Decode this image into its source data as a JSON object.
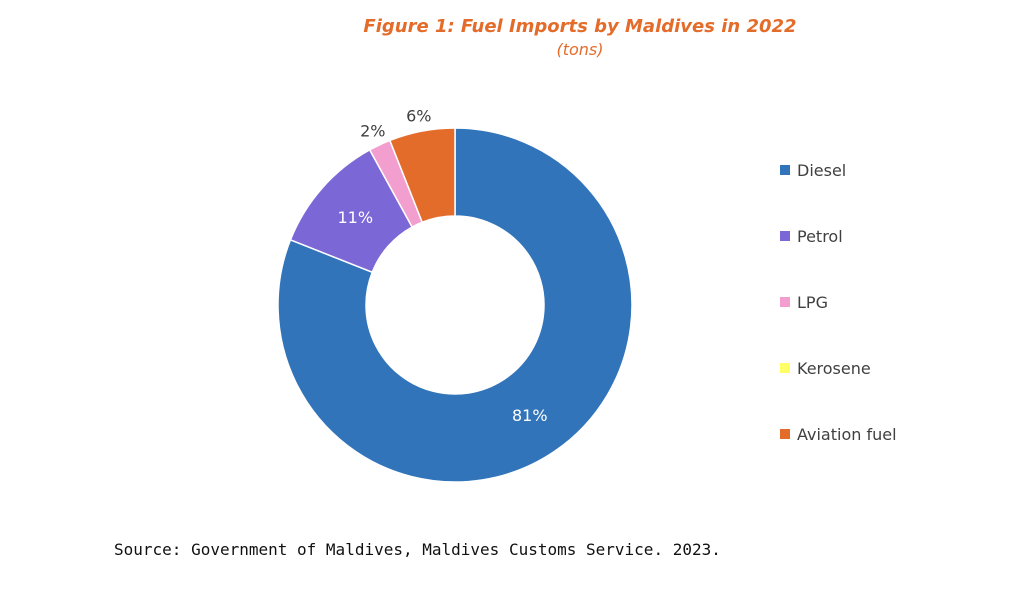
{
  "chart_data": {
    "type": "pie",
    "donut": true,
    "title": "Figure 1: Fuel Imports by Maldives in 2022",
    "subtitle": "(tons)",
    "categories": [
      "Diesel",
      "Petrol",
      "LPG",
      "Kerosene",
      "Aviation fuel"
    ],
    "values": [
      81,
      11,
      2,
      0,
      6
    ],
    "data_labels": [
      "81%",
      "11%",
      "2%",
      "",
      "6%"
    ],
    "colors": [
      "#3174B9",
      "#7B68D6",
      "#F29ECF",
      "#FFFF66",
      "#E46C2A"
    ],
    "legend_position": "right"
  },
  "source": "Source: Government of Maldives, Maldives Customs Service. 2023."
}
